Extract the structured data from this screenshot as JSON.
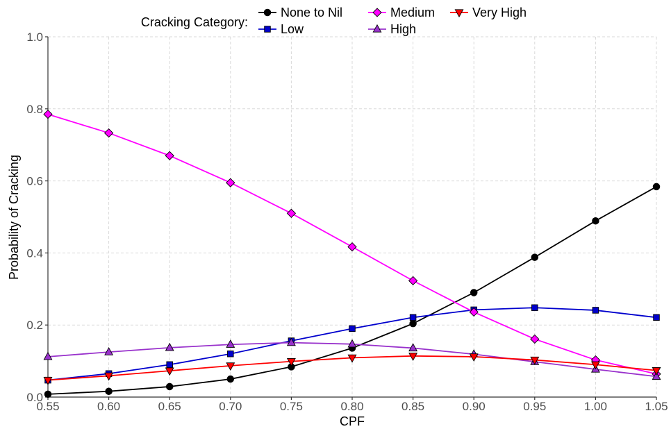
{
  "chart_data": {
    "type": "line",
    "xlabel": "CPF",
    "ylabel": "Probability of Cracking",
    "xlim": [
      0.55,
      1.05
    ],
    "ylim": [
      0.0,
      1.0
    ],
    "x": [
      0.55,
      0.6,
      0.65,
      0.7,
      0.75,
      0.8,
      0.85,
      0.9,
      0.95,
      1.0,
      1.05
    ],
    "x_ticks": [
      "0.55",
      "0.60",
      "0.65",
      "0.70",
      "0.75",
      "0.80",
      "0.85",
      "0.90",
      "0.95",
      "1.00",
      "1.05"
    ],
    "y_ticks": [
      "0.0",
      "0.2",
      "0.4",
      "0.6",
      "0.8",
      "1.0"
    ],
    "y_tick_values": [
      0.0,
      0.2,
      0.4,
      0.6,
      0.8,
      1.0
    ],
    "grid": true,
    "legend": {
      "title": "Cracking Category:",
      "placement": "top"
    },
    "series": [
      {
        "name": "None to Nil",
        "color": "#000000",
        "marker": "circle",
        "values": [
          0.008,
          0.016,
          0.029,
          0.05,
          0.084,
          0.136,
          0.204,
          0.29,
          0.388,
          0.489,
          0.584
        ]
      },
      {
        "name": "Low",
        "color": "#0000cd",
        "marker": "square",
        "values": [
          0.047,
          0.065,
          0.09,
          0.12,
          0.156,
          0.19,
          0.221,
          0.242,
          0.248,
          0.241,
          0.221
        ]
      },
      {
        "name": "Medium",
        "color": "#ff00ff",
        "marker": "diamond",
        "values": [
          0.785,
          0.733,
          0.67,
          0.595,
          0.51,
          0.417,
          0.323,
          0.236,
          0.161,
          0.103,
          0.064
        ]
      },
      {
        "name": "High",
        "color": "#9932cc",
        "marker": "triangle-up",
        "values": [
          0.112,
          0.125,
          0.137,
          0.146,
          0.151,
          0.147,
          0.136,
          0.119,
          0.098,
          0.077,
          0.057
        ]
      },
      {
        "name": "Very High",
        "color": "#ff0000",
        "marker": "triangle-down",
        "values": [
          0.047,
          0.059,
          0.073,
          0.087,
          0.099,
          0.109,
          0.114,
          0.112,
          0.103,
          0.09,
          0.074
        ]
      }
    ]
  }
}
